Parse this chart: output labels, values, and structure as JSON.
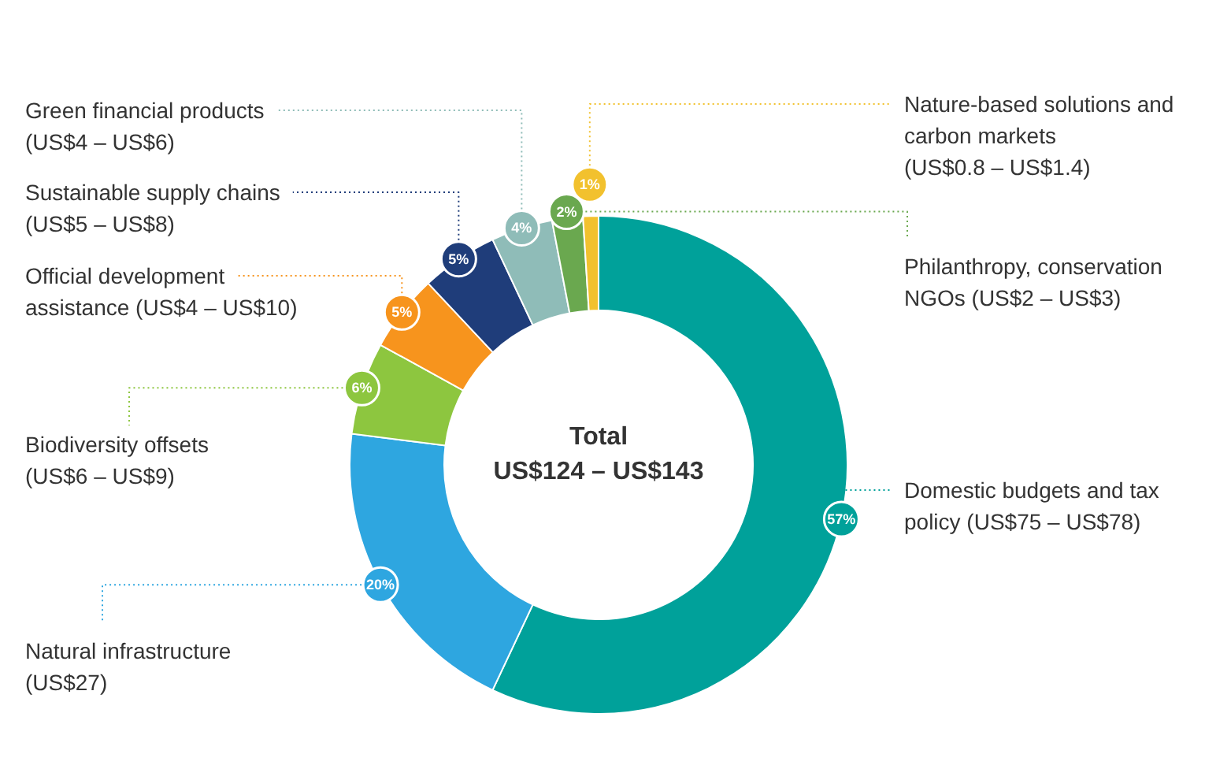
{
  "chart_data": {
    "type": "donut",
    "categories": [
      "Domestic budgets and tax policy (US$75 – US$78)",
      "Natural infrastructure (US$27)",
      "Biodiversity offsets (US$6 – US$9)",
      "Official development assistance (US$4 – US$10)",
      "Sustainable supply chains (US$5 – US$8)",
      "Green financial products (US$4 – US$6)",
      "Philanthropy, conservation NGOs (US$2 – US$3)",
      "Nature-based solutions and carbon markets (US$0.8 – US$1.4)"
    ],
    "values": [
      57,
      20,
      6,
      5,
      5,
      4,
      2,
      1
    ],
    "value_labels": [
      "57%",
      "20%",
      "6%",
      "5%",
      "5%",
      "4%",
      "2%",
      "1%"
    ],
    "colors": [
      "#00a19a",
      "#2ea6e0",
      "#8dc63f",
      "#f7941d",
      "#1f3d7a",
      "#8fbcb8",
      "#6aa84f",
      "#f2c12e"
    ],
    "annotations": [
      "Total",
      "US$124 – US$143"
    ]
  }
}
